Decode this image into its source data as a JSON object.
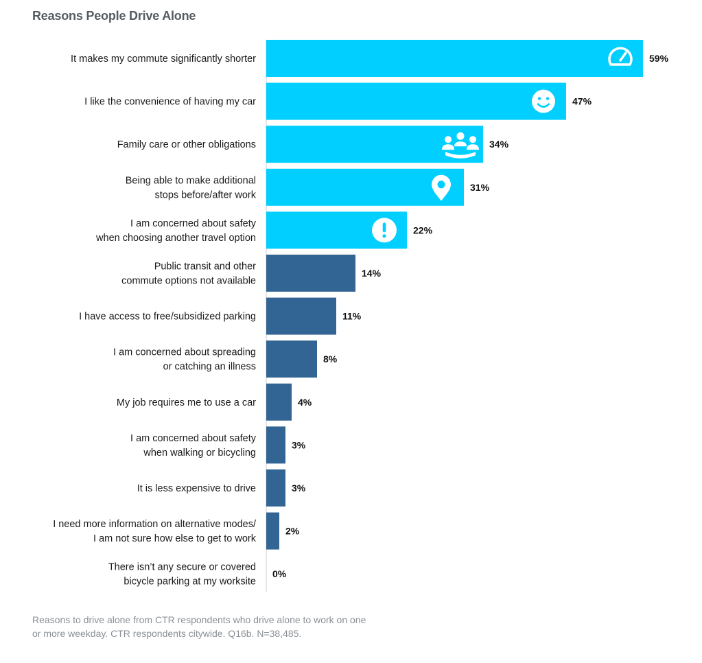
{
  "chart_data": {
    "type": "bar",
    "orientation": "horizontal",
    "title": "Reasons People Drive Alone",
    "footnote": "Reasons to drive alone from CTR respondents who drive alone to work on one or more weekday. CTR respondents citywide. Q16b. N=38,485.",
    "xlim": [
      0,
      59
    ],
    "categories": [
      [
        "It makes my commute significantly shorter"
      ],
      [
        "I like the convenience of having my car"
      ],
      [
        "Family care or other obligations"
      ],
      [
        "Being able to make additional",
        "stops before/after work"
      ],
      [
        "I am concerned about safety",
        "when choosing another travel option"
      ],
      [
        "Public transit and other",
        "commute options not available"
      ],
      [
        "I have access to free/subsidized parking"
      ],
      [
        "I am concerned about spreading",
        "or catching an illness"
      ],
      [
        "My job requires me to use a car"
      ],
      [
        "I am concerned about safety",
        "when walking or bicycling"
      ],
      [
        "It is less expensive to drive"
      ],
      [
        "I need more information on alternative modes/",
        "I am not sure how else to get to work"
      ],
      [
        "There isn’t any secure or covered",
        "bicycle parking at my worksite"
      ]
    ],
    "values": [
      59,
      47,
      34,
      31,
      22,
      14,
      11,
      8,
      4,
      3,
      3,
      2,
      0
    ],
    "value_labels": [
      "59%",
      "47%",
      "34%",
      "31%",
      "22%",
      "14%",
      "11%",
      "8%",
      "4%",
      "3%",
      "3%",
      "2%",
      "0%"
    ],
    "highlight_count": 5,
    "icons": [
      "speedometer-icon",
      "smiley-icon",
      "family-icon",
      "location-pin-icon",
      "exclamation-icon"
    ],
    "colors": {
      "highlight": "#00cfff",
      "default": "#336594",
      "axis": "#cccccc"
    }
  }
}
